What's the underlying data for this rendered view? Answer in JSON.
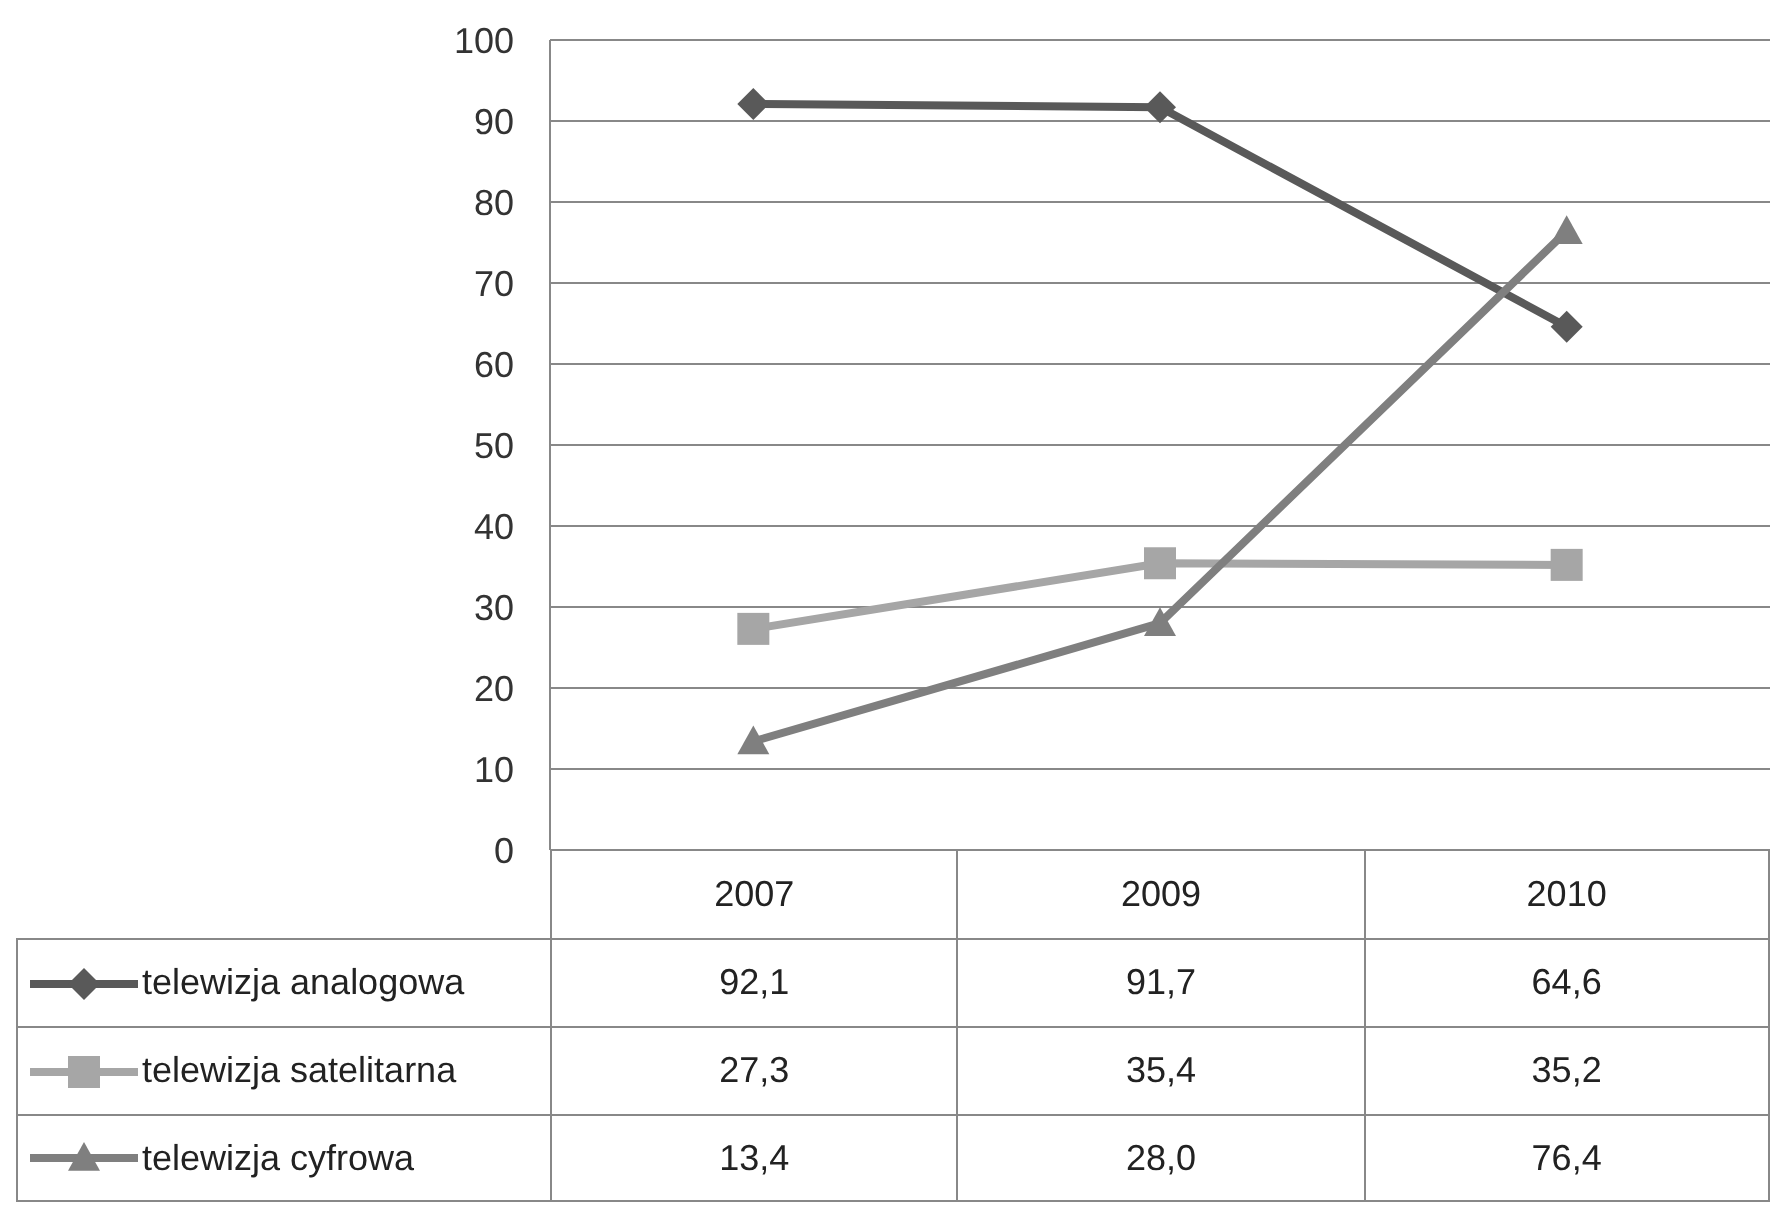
{
  "chart_data": {
    "type": "line",
    "categories": [
      "2007",
      "2009",
      "2010"
    ],
    "series": [
      {
        "name": "telewizja analogowa",
        "color": "#595959",
        "marker": "diamond",
        "values": [
          92.1,
          91.7,
          64.6
        ],
        "value_labels": [
          "92,1",
          "91,7",
          "64,6"
        ]
      },
      {
        "name": "telewizja satelitarna",
        "color": "#a6a6a6",
        "marker": "square",
        "values": [
          27.3,
          35.4,
          35.2
        ],
        "value_labels": [
          "27,3",
          "35,4",
          "35,2"
        ]
      },
      {
        "name": "telewizja cyfrowa",
        "color": "#7f7f7f",
        "marker": "triangle",
        "values": [
          13.4,
          28.0,
          76.4
        ],
        "value_labels": [
          "13,4",
          "28,0",
          "76,4"
        ]
      }
    ],
    "ylim": [
      0,
      100
    ],
    "yticks": [
      0,
      10,
      20,
      30,
      40,
      50,
      60,
      70,
      80,
      90,
      100
    ],
    "grid": "y",
    "legend": "bottom",
    "line_style": "solid"
  }
}
